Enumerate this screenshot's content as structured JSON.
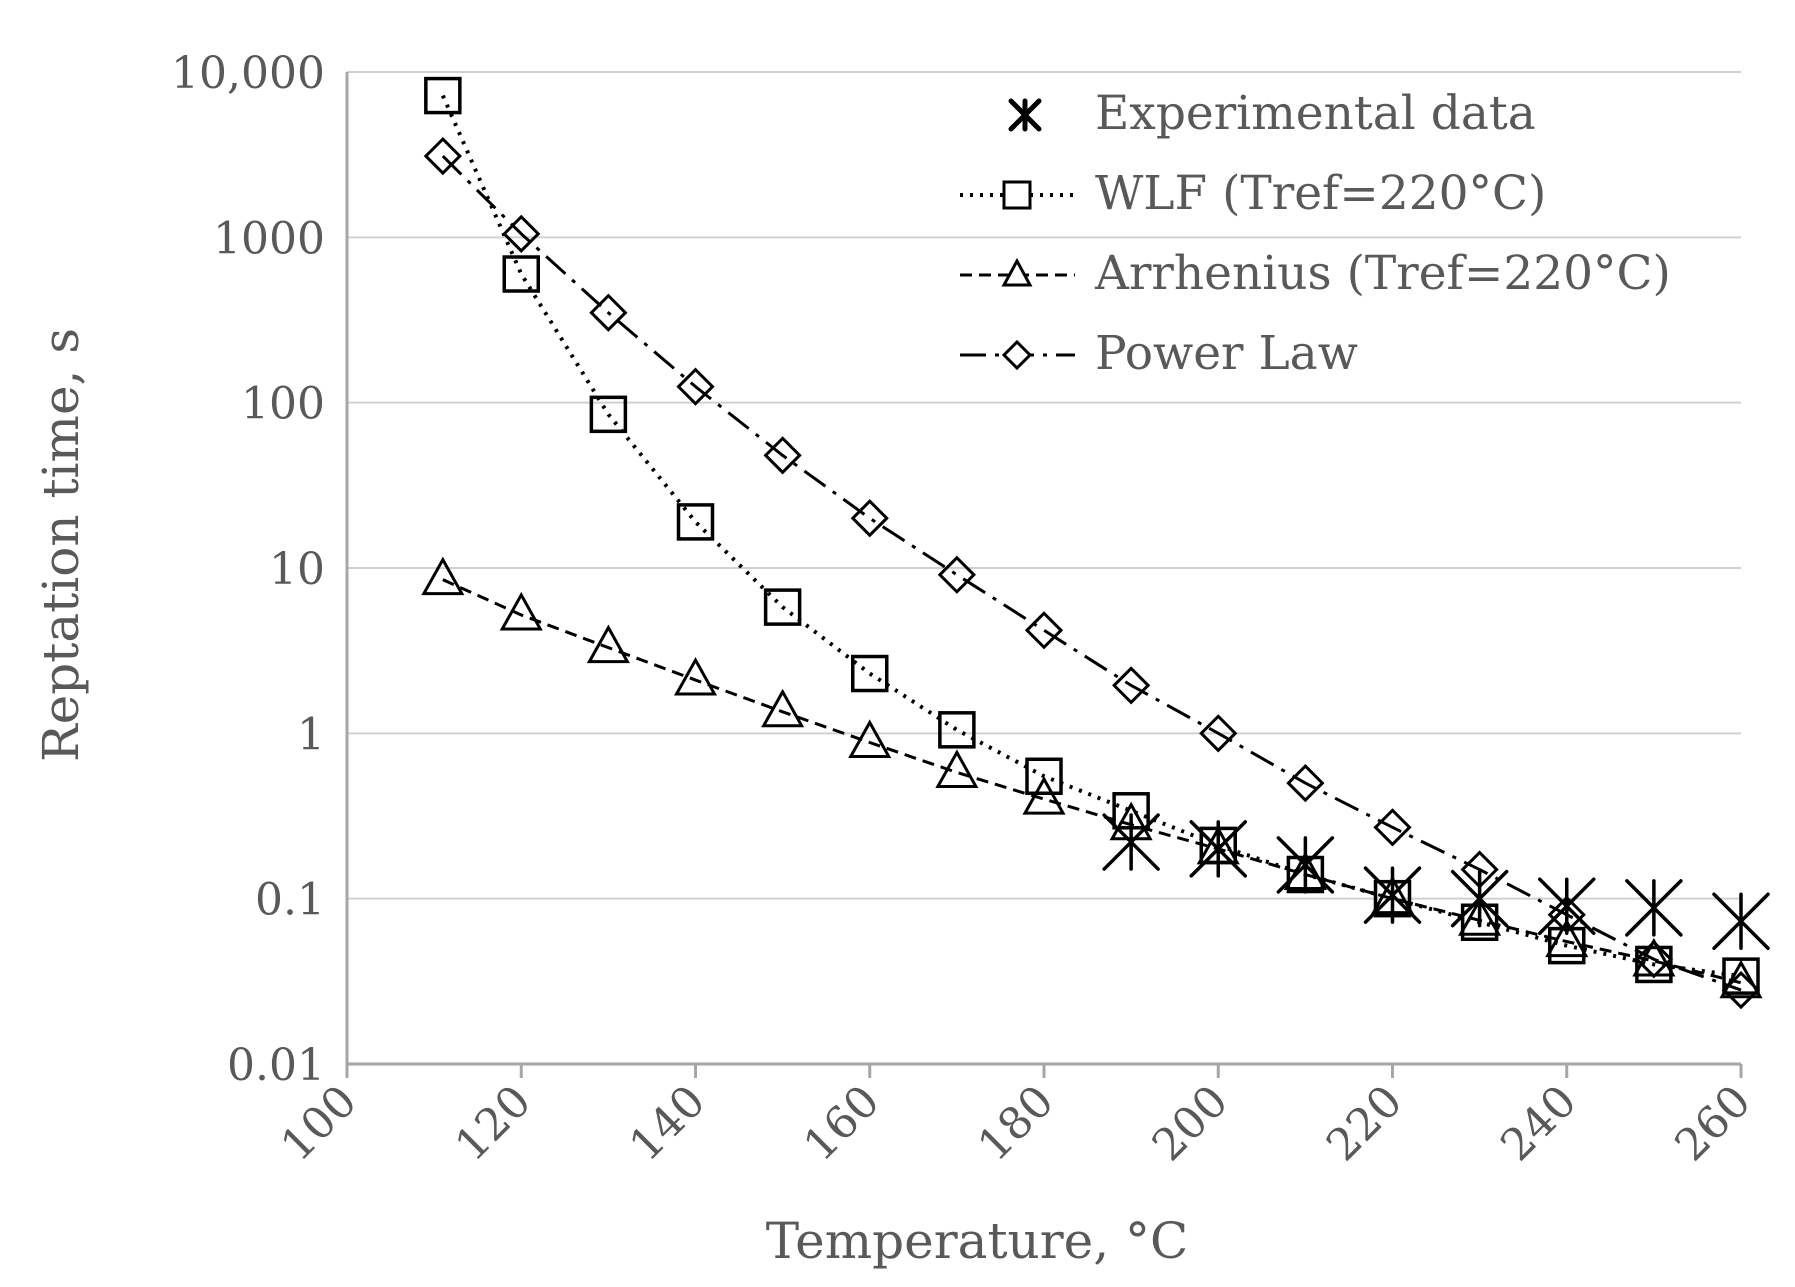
{
  "chart_data": {
    "type": "line",
    "title": "",
    "xlabel": "Temperature, °C",
    "ylabel": "Reptation time, s",
    "xlim": [
      100,
      260
    ],
    "ylim": [
      0.01,
      10000
    ],
    "yscale": "log",
    "grid": "horizontal",
    "legend_position": "top-right",
    "x_ticks": [
      "100",
      "120",
      "140",
      "160",
      "180",
      "200",
      "220",
      "240",
      "260"
    ],
    "y_ticks": [
      {
        "value": 10000,
        "label": "10,000"
      },
      {
        "value": 1000,
        "label": "1000"
      },
      {
        "value": 100,
        "label": "100"
      },
      {
        "value": 10,
        "label": "10"
      },
      {
        "value": 1,
        "label": "1"
      },
      {
        "value": 0.1,
        "label": "0.1"
      },
      {
        "value": 0.01,
        "label": "0.01"
      }
    ],
    "series": [
      {
        "name": "Experimental data",
        "marker": "asterisk",
        "line": "none",
        "x": [
          190,
          200,
          210,
          220,
          230,
          240,
          250,
          260
        ],
        "values": [
          0.22,
          0.2,
          0.16,
          0.105,
          0.1,
          0.09,
          0.088,
          0.073
        ]
      },
      {
        "name": "WLF (Tref=220°C)",
        "marker": "square",
        "line": "dotted",
        "x": [
          111,
          120,
          130,
          140,
          150,
          160,
          170,
          180,
          190,
          200,
          210,
          220,
          230,
          240,
          250,
          260
        ],
        "values": [
          7200,
          600,
          85,
          19,
          5.8,
          2.3,
          1.05,
          0.55,
          0.34,
          0.21,
          0.14,
          0.1,
          0.072,
          0.052,
          0.04,
          0.034
        ]
      },
      {
        "name": "Arrhenius (Tref=220°C)",
        "marker": "triangle",
        "line": "dashed",
        "x": [
          111,
          120,
          130,
          140,
          150,
          160,
          170,
          180,
          190,
          200,
          210,
          220,
          230,
          240,
          250,
          260
        ],
        "values": [
          8.5,
          5.2,
          3.3,
          2.1,
          1.35,
          0.88,
          0.58,
          0.4,
          0.28,
          0.2,
          0.14,
          0.1,
          0.074,
          0.055,
          0.042,
          0.031
        ]
      },
      {
        "name": "Power Law",
        "marker": "diamond",
        "line": "dash-dot",
        "x": [
          111,
          120,
          130,
          140,
          150,
          160,
          170,
          180,
          190,
          200,
          210,
          220,
          230,
          240,
          250,
          260
        ],
        "values": [
          3100,
          1050,
          350,
          125,
          48,
          20,
          9.1,
          4.2,
          1.95,
          1.0,
          0.5,
          0.27,
          0.15,
          0.08,
          0.043,
          0.028
        ]
      }
    ]
  }
}
